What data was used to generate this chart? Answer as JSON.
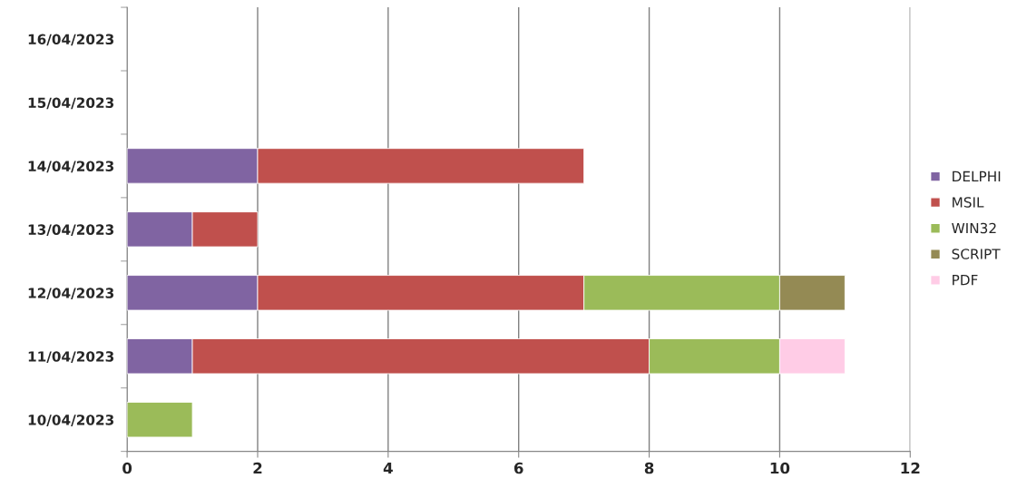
{
  "chart_data": {
    "type": "bar",
    "orientation": "horizontal",
    "stacked": true,
    "categories": [
      "16/04/2023",
      "15/04/2023",
      "14/04/2023",
      "13/04/2023",
      "12/04/2023",
      "11/04/2023",
      "10/04/2023"
    ],
    "series": [
      {
        "name": "DELPHI",
        "color": "#8064a2",
        "values": [
          null,
          null,
          2,
          1,
          2,
          1,
          null
        ]
      },
      {
        "name": "MSIL",
        "color": "#c0504d",
        "values": [
          null,
          null,
          5,
          1,
          5,
          7,
          null
        ]
      },
      {
        "name": "WIN32",
        "color": "#9bbb59",
        "values": [
          null,
          null,
          null,
          null,
          3,
          2,
          1
        ]
      },
      {
        "name": "SCRIPT",
        "color": "#948a54",
        "values": [
          null,
          null,
          null,
          null,
          1,
          null,
          null
        ]
      },
      {
        "name": "PDF",
        "color": "#ffcce6",
        "values": [
          null,
          null,
          null,
          null,
          null,
          1,
          null
        ]
      }
    ],
    "xlim": [
      0,
      12
    ],
    "xticks": [
      0,
      2,
      4,
      6,
      8,
      10,
      12
    ],
    "grid": "x",
    "legend": "right"
  }
}
